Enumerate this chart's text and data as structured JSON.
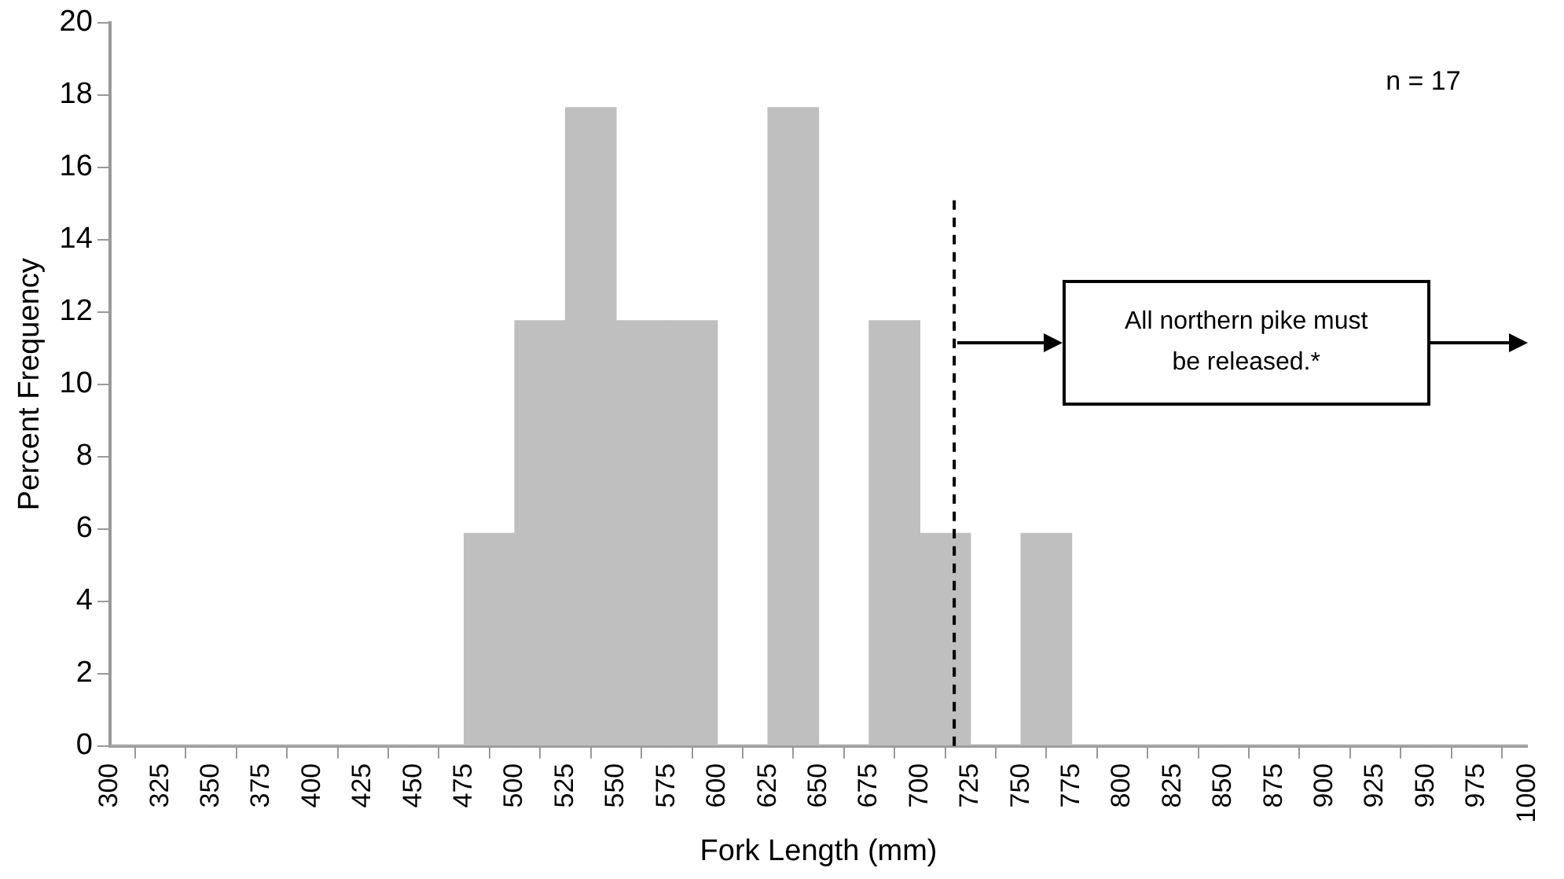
{
  "chart_data": {
    "type": "histogram",
    "xlabel": "Fork Length (mm)",
    "ylabel": "Percent Frequency",
    "bins": [
      300,
      325,
      350,
      375,
      400,
      425,
      450,
      475,
      500,
      525,
      550,
      575,
      600,
      625,
      650,
      675,
      700,
      725,
      750,
      775,
      800,
      825,
      850,
      875,
      900,
      925,
      950,
      975,
      1000
    ],
    "values": [
      0,
      0,
      0,
      0,
      0,
      0,
      0,
      5.88,
      11.76,
      17.65,
      11.76,
      11.76,
      0,
      17.65,
      0,
      11.76,
      5.88,
      0,
      5.88,
      0,
      0,
      0,
      0,
      0,
      0,
      0,
      0,
      0
    ],
    "color": "#bfbfbf",
    "xlim": [
      300,
      1000
    ],
    "xticks": [
      300,
      325,
      350,
      375,
      400,
      425,
      450,
      475,
      500,
      525,
      550,
      575,
      600,
      625,
      650,
      675,
      700,
      725,
      750,
      775,
      800,
      825,
      850,
      875,
      900,
      925,
      950,
      975,
      1000
    ],
    "ylim": [
      0,
      20
    ],
    "yticks": [
      0,
      2,
      4,
      6,
      8,
      10,
      12,
      14,
      16,
      18,
      20
    ],
    "grid": false,
    "legend": false,
    "ref_lines": [
      {
        "axis": "x",
        "value": 717,
        "color": "#000000",
        "line_style": "dashed"
      }
    ],
    "annotations": [
      "n = 17",
      "All northern pike must be released.*"
    ]
  }
}
